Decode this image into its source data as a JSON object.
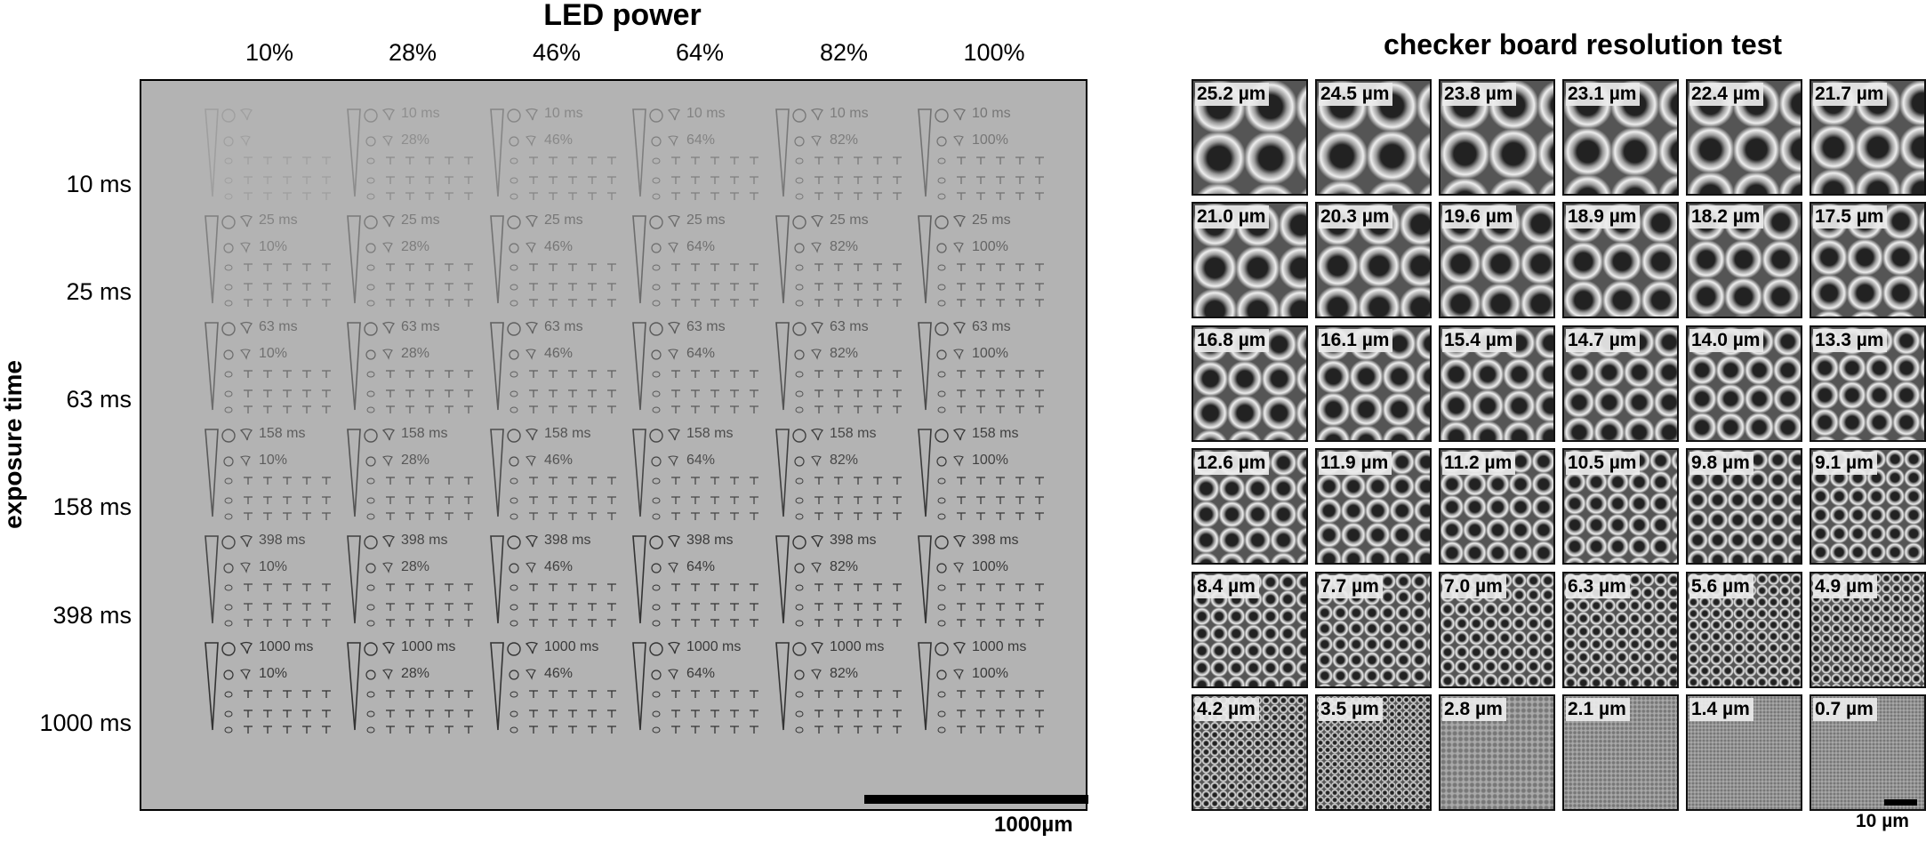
{
  "left_panel": {
    "title": "LED power",
    "y_axis_label": "exposure time",
    "led_power": [
      "10%",
      "28%",
      "46%",
      "64%",
      "82%",
      "100%"
    ],
    "exposure_times": [
      "10 ms",
      "25 ms",
      "63 ms",
      "158 ms",
      "398 ms",
      "1000 ms"
    ],
    "scale_bar": "1000µm",
    "printed_cells": [
      {
        "row": 0,
        "col": 0,
        "visible": false
      },
      {
        "row": 0,
        "col": 1,
        "visible": true,
        "text": [
          "10 ms",
          "28%"
        ]
      },
      {
        "row": 0,
        "col": 2,
        "visible": true,
        "text": [
          "10 ms",
          "46%"
        ]
      },
      {
        "row": 0,
        "col": 3,
        "visible": true,
        "text": [
          "10 ms",
          "64%"
        ]
      },
      {
        "row": 0,
        "col": 4,
        "visible": true,
        "text": [
          "10 ms",
          "82%"
        ]
      },
      {
        "row": 0,
        "col": 5,
        "visible": true,
        "text": [
          "10 ms",
          "100%"
        ]
      },
      {
        "row": 1,
        "col": 0,
        "visible": true,
        "text": [
          "25 ms",
          "10%"
        ]
      },
      {
        "row": 1,
        "col": 1,
        "visible": true,
        "text": [
          "25 ms",
          "28%"
        ]
      },
      {
        "row": 1,
        "col": 2,
        "visible": true,
        "text": [
          "25 ms",
          "46%"
        ]
      },
      {
        "row": 1,
        "col": 3,
        "visible": true,
        "text": [
          "25 ms",
          "64%"
        ]
      },
      {
        "row": 1,
        "col": 4,
        "visible": true,
        "text": [
          "25 ms",
          "82%"
        ]
      },
      {
        "row": 1,
        "col": 5,
        "visible": true,
        "text": [
          "25 ms",
          "100%"
        ]
      },
      {
        "row": 2,
        "col": 0,
        "visible": true,
        "text": [
          "63 ms",
          "10%"
        ]
      },
      {
        "row": 2,
        "col": 1,
        "visible": true,
        "text": [
          "63 ms",
          "28%"
        ]
      },
      {
        "row": 2,
        "col": 2,
        "visible": true,
        "text": [
          "63 ms",
          "46%"
        ]
      },
      {
        "row": 2,
        "col": 3,
        "visible": true,
        "text": [
          "63 ms",
          "64%"
        ]
      },
      {
        "row": 2,
        "col": 4,
        "visible": true,
        "text": [
          "63 ms",
          "82%"
        ]
      },
      {
        "row": 2,
        "col": 5,
        "visible": true,
        "text": [
          "63 ms",
          "100%"
        ]
      },
      {
        "row": 3,
        "col": 0,
        "visible": true,
        "text": [
          "158 ms",
          "10%"
        ]
      },
      {
        "row": 3,
        "col": 1,
        "visible": true,
        "text": [
          "158 ms",
          "28%"
        ]
      },
      {
        "row": 3,
        "col": 2,
        "visible": true,
        "text": [
          "158 ms",
          "46%"
        ]
      },
      {
        "row": 3,
        "col": 3,
        "visible": true,
        "text": [
          "158 ms",
          "64%"
        ]
      },
      {
        "row": 3,
        "col": 4,
        "visible": true,
        "text": [
          "158 ms",
          "82%"
        ]
      },
      {
        "row": 3,
        "col": 5,
        "visible": true,
        "text": [
          "158 ms",
          "100%"
        ]
      },
      {
        "row": 4,
        "col": 0,
        "visible": true,
        "text": [
          "398 ms",
          "10%"
        ]
      },
      {
        "row": 4,
        "col": 1,
        "visible": true,
        "text": [
          "398 ms",
          "28%"
        ]
      },
      {
        "row": 4,
        "col": 2,
        "visible": true,
        "text": [
          "398 ms",
          "46%"
        ]
      },
      {
        "row": 4,
        "col": 3,
        "visible": true,
        "text": [
          "398 ms",
          "64%"
        ]
      },
      {
        "row": 4,
        "col": 4,
        "visible": true,
        "text": [
          "398 ms",
          "82%"
        ]
      },
      {
        "row": 4,
        "col": 5,
        "visible": true,
        "text": [
          "398 ms",
          "100%"
        ]
      },
      {
        "row": 5,
        "col": 0,
        "visible": true,
        "text": [
          "1000 ms",
          "10%"
        ]
      },
      {
        "row": 5,
        "col": 1,
        "visible": true,
        "text": [
          "1000 ms",
          "28%"
        ]
      },
      {
        "row": 5,
        "col": 2,
        "visible": true,
        "text": [
          "1000 ms",
          "46%"
        ]
      },
      {
        "row": 5,
        "col": 3,
        "visible": true,
        "text": [
          "1000 ms",
          "64%"
        ]
      },
      {
        "row": 5,
        "col": 4,
        "visible": true,
        "text": [
          "1000 ms",
          "82%"
        ]
      },
      {
        "row": 5,
        "col": 5,
        "visible": true,
        "text": [
          "1000 ms",
          "100%"
        ]
      }
    ]
  },
  "right_panel": {
    "title": "checker board resolution test",
    "scale_bar": "10 µm",
    "tiles": [
      "25.2 µm",
      "24.5 µm",
      "23.8 µm",
      "23.1 µm",
      "22.4 µm",
      "21.7 µm",
      "21.0 µm",
      "20.3 µm",
      "19.6 µm",
      "18.9 µm",
      "18.2 µm",
      "17.5 µm",
      "16.8 µm",
      "16.1 µm",
      "15.4 µm",
      "14.7 µm",
      "14.0 µm",
      "13.3 µm",
      "12.6 µm",
      "11.9 µm",
      "11.2 µm",
      "10.5 µm",
      "9.8 µm",
      "9.1 µm",
      "8.4 µm",
      "7.7 µm",
      "7.0 µm",
      "6.3 µm",
      "5.6 µm",
      "4.9 µm",
      "4.2 µm",
      "3.5 µm",
      "2.8 µm",
      "2.1 µm",
      "1.4 µm",
      "0.7 µm"
    ]
  }
}
